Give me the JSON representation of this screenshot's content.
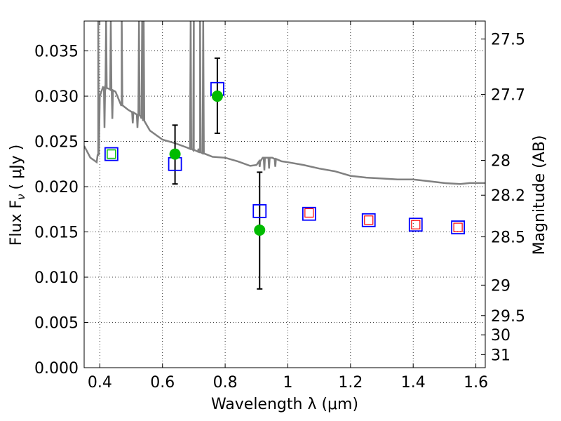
{
  "chart_data": {
    "type": "scatter",
    "xlabel": "Wavelength  λ (μm)",
    "ylabel": "Flux  F",
    "ylabel_sub": "ν",
    "ylabel_unit": "(  μJy )",
    "y2label": "Magnitude (AB)",
    "xlim": [
      0.35,
      1.63
    ],
    "ylim": [
      0.0,
      0.0383
    ],
    "grid": true,
    "x_ticks": [
      0.4,
      0.6,
      0.8,
      1.0,
      1.2,
      1.4,
      1.6
    ],
    "x_tick_labels": [
      "0.4",
      "0.6",
      "0.8",
      "1",
      "1.2",
      "1.4",
      "1.6"
    ],
    "y_ticks": [
      0.0,
      0.005,
      0.01,
      0.015,
      0.02,
      0.025,
      0.03,
      0.035
    ],
    "y_tick_labels": [
      "0.000",
      "0.005",
      "0.010",
      "0.015",
      "0.020",
      "0.025",
      "0.030",
      "0.035"
    ],
    "y2_ticks": [
      27.5,
      27.7,
      28,
      28.2,
      28.5,
      29,
      29.5,
      30,
      31
    ],
    "y2_tick_labels": [
      "27.5",
      "27.7",
      "28",
      "28.2",
      "28.5",
      "29",
      "29.5",
      "30",
      "31"
    ],
    "colors": {
      "model": "#808080",
      "model_phot": "#0000ff",
      "observed": "#00bb00",
      "upper_phot": "#ff0000",
      "errorbar": "#000000"
    },
    "series": [
      {
        "kind": "line",
        "x": [
          0.35,
          0.37,
          0.39,
          0.395,
          0.4,
          0.41,
          0.43,
          0.45,
          0.47,
          0.49,
          0.5,
          0.53,
          0.56,
          0.6,
          0.64,
          0.68,
          0.72,
          0.76,
          0.8,
          0.84,
          0.88,
          0.9,
          0.92,
          0.95,
          0.98,
          1.0,
          1.05,
          1.1,
          1.15,
          1.2,
          1.25,
          1.3,
          1.35,
          1.4,
          1.45,
          1.5,
          1.55,
          1.58,
          1.63
        ],
        "y": [
          0.0245,
          0.0232,
          0.0227,
          0.0235,
          0.03,
          0.031,
          0.0308,
          0.0305,
          0.029,
          0.0285,
          0.0283,
          0.0278,
          0.0262,
          0.0252,
          0.0248,
          0.0243,
          0.0238,
          0.0233,
          0.0232,
          0.0228,
          0.0223,
          0.0224,
          0.0232,
          0.0232,
          0.0228,
          0.0227,
          0.0224,
          0.022,
          0.0217,
          0.0212,
          0.021,
          0.0209,
          0.0208,
          0.0208,
          0.0206,
          0.0204,
          0.0203,
          0.0204,
          0.0204
        ],
        "spikes": [
          {
            "x": 0.395,
            "y": 0.0383
          },
          {
            "x": 0.42,
            "y": 0.0383
          },
          {
            "x": 0.435,
            "y": 0.0383
          },
          {
            "x": 0.47,
            "y": 0.0383
          },
          {
            "x": 0.525,
            "y": 0.0383
          },
          {
            "x": 0.535,
            "y": 0.0383
          },
          {
            "x": 0.54,
            "y": 0.0383
          },
          {
            "x": 0.69,
            "y": 0.0383
          },
          {
            "x": 0.7,
            "y": 0.0383
          },
          {
            "x": 0.72,
            "y": 0.0383
          },
          {
            "x": 0.73,
            "y": 0.0383
          }
        ],
        "dips": [
          {
            "x": 0.415,
            "y": 0.0265
          },
          {
            "x": 0.44,
            "y": 0.0275
          },
          {
            "x": 0.505,
            "y": 0.027
          },
          {
            "x": 0.52,
            "y": 0.0265
          },
          {
            "x": 0.7,
            "y": 0.024
          },
          {
            "x": 0.715,
            "y": 0.0242
          },
          {
            "x": 0.91,
            "y": 0.0222
          },
          {
            "x": 0.925,
            "y": 0.0218
          },
          {
            "x": 0.94,
            "y": 0.022
          },
          {
            "x": 0.96,
            "y": 0.0222
          }
        ]
      },
      {
        "kind": "open-square",
        "x": [
          0.437,
          0.64,
          0.775,
          0.91,
          1.068,
          1.258,
          1.408,
          1.543
        ],
        "y": [
          0.0236,
          0.0225,
          0.0308,
          0.0173,
          0.017,
          0.0163,
          0.0158,
          0.0155
        ]
      },
      {
        "kind": "filled-circle",
        "x": [
          0.437,
          0.64,
          0.775,
          0.91
        ],
        "y": [
          0.0236,
          0.0236,
          0.03,
          0.0152
        ],
        "yerr_low": [
          null,
          0.0203,
          0.0259,
          0.0087
        ],
        "yerr_high": [
          null,
          0.0268,
          0.0342,
          0.0216
        ]
      },
      {
        "kind": "small-square",
        "x": [
          1.068,
          1.258,
          1.408,
          1.543
        ],
        "y": [
          0.0171,
          0.0163,
          0.0158,
          0.0155
        ]
      }
    ]
  }
}
